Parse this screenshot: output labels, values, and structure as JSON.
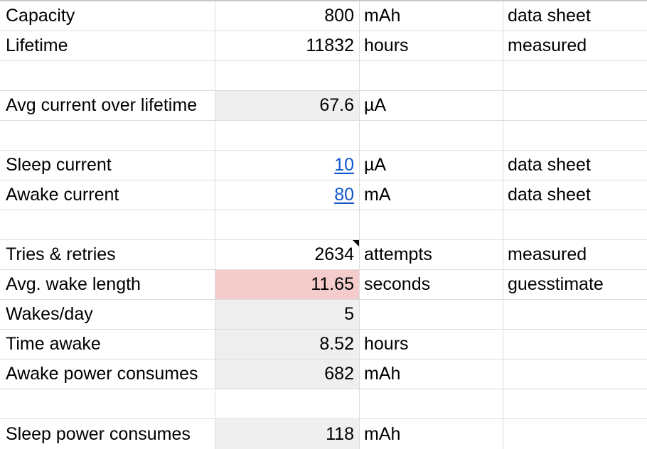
{
  "rows": [
    {
      "label": "Capacity",
      "value": "800",
      "unit": "mAh",
      "source": "data sheet"
    },
    {
      "label": "Lifetime",
      "value": "11832",
      "unit": "hours",
      "source": "measured"
    },
    {
      "label": "",
      "value": "",
      "unit": "",
      "source": ""
    },
    {
      "label": "Avg current over lifetime",
      "value": "67.6",
      "unit": "µA",
      "source": ""
    },
    {
      "label": "",
      "value": "",
      "unit": "",
      "source": ""
    },
    {
      "label": "Sleep current",
      "value": "10",
      "unit": "µA",
      "source": "data sheet"
    },
    {
      "label": "Awake current",
      "value": "80",
      "unit": "mA",
      "source": "data sheet"
    },
    {
      "label": "",
      "value": "",
      "unit": "",
      "source": ""
    },
    {
      "label": "Tries & retries",
      "value": "2634",
      "unit": "attempts",
      "source": "measured"
    },
    {
      "label": "Avg. wake length",
      "value": "11.65",
      "unit": "seconds",
      "source": "guesstimate"
    },
    {
      "label": "Wakes/day",
      "value": "5",
      "unit": "",
      "source": ""
    },
    {
      "label": "Time awake",
      "value": "8.52",
      "unit": "hours",
      "source": ""
    },
    {
      "label": "Awake power consumes",
      "value": "682",
      "unit": "mAh",
      "source": ""
    },
    {
      "label": "",
      "value": "",
      "unit": "",
      "source": ""
    },
    {
      "label": "Sleep power consumes",
      "value": "118",
      "unit": "mAh",
      "source": ""
    }
  ],
  "colors": {
    "shaded": "#efefef",
    "highlight": "#f4cccc",
    "link": "#1155cc",
    "grid": "#dcdcdc"
  }
}
